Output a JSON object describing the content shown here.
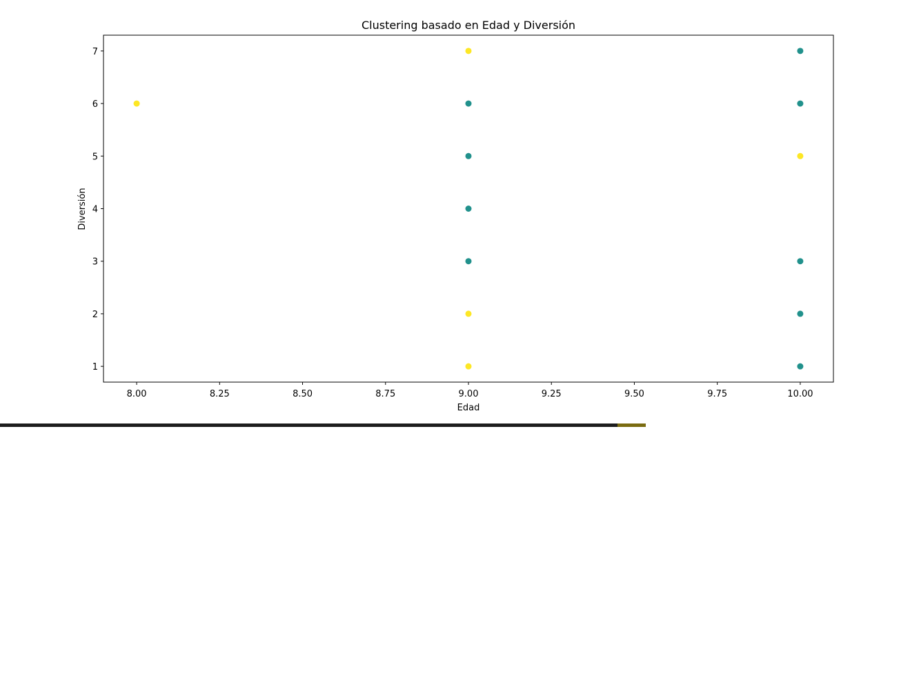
{
  "chart_data": {
    "type": "scatter",
    "title": "Clustering basado en Edad y Diversión",
    "xlabel": "Edad",
    "ylabel": "Diversión",
    "xlim": [
      7.9,
      10.1
    ],
    "ylim": [
      0.7,
      7.3
    ],
    "x_ticks": [
      8.0,
      8.25,
      8.5,
      8.75,
      9.0,
      9.25,
      9.5,
      9.75,
      10.0
    ],
    "x_tick_labels": [
      "8.00",
      "8.25",
      "8.50",
      "8.75",
      "9.00",
      "9.25",
      "9.50",
      "9.75",
      "10.00"
    ],
    "y_ticks": [
      1,
      2,
      3,
      4,
      5,
      6,
      7
    ],
    "y_tick_labels": [
      "1",
      "2",
      "3",
      "4",
      "5",
      "6",
      "7"
    ],
    "grid": false,
    "legend": "none",
    "colors": {
      "cluster_0": "#21918c",
      "cluster_1": "#fde725"
    },
    "points": [
      {
        "x": 8,
        "y": 6,
        "cluster": 1
      },
      {
        "x": 9,
        "y": 7,
        "cluster": 1
      },
      {
        "x": 9,
        "y": 6,
        "cluster": 0
      },
      {
        "x": 9,
        "y": 5,
        "cluster": 0
      },
      {
        "x": 9,
        "y": 4,
        "cluster": 0
      },
      {
        "x": 9,
        "y": 3,
        "cluster": 0
      },
      {
        "x": 9,
        "y": 2,
        "cluster": 1
      },
      {
        "x": 9,
        "y": 1,
        "cluster": 1
      },
      {
        "x": 10,
        "y": 7,
        "cluster": 0
      },
      {
        "x": 10,
        "y": 6,
        "cluster": 0
      },
      {
        "x": 10,
        "y": 5,
        "cluster": 1
      },
      {
        "x": 10,
        "y": 3,
        "cluster": 0
      },
      {
        "x": 10,
        "y": 2,
        "cluster": 0
      },
      {
        "x": 10,
        "y": 1,
        "cluster": 0
      }
    ]
  },
  "progress": {
    "fraction": 0.956
  }
}
